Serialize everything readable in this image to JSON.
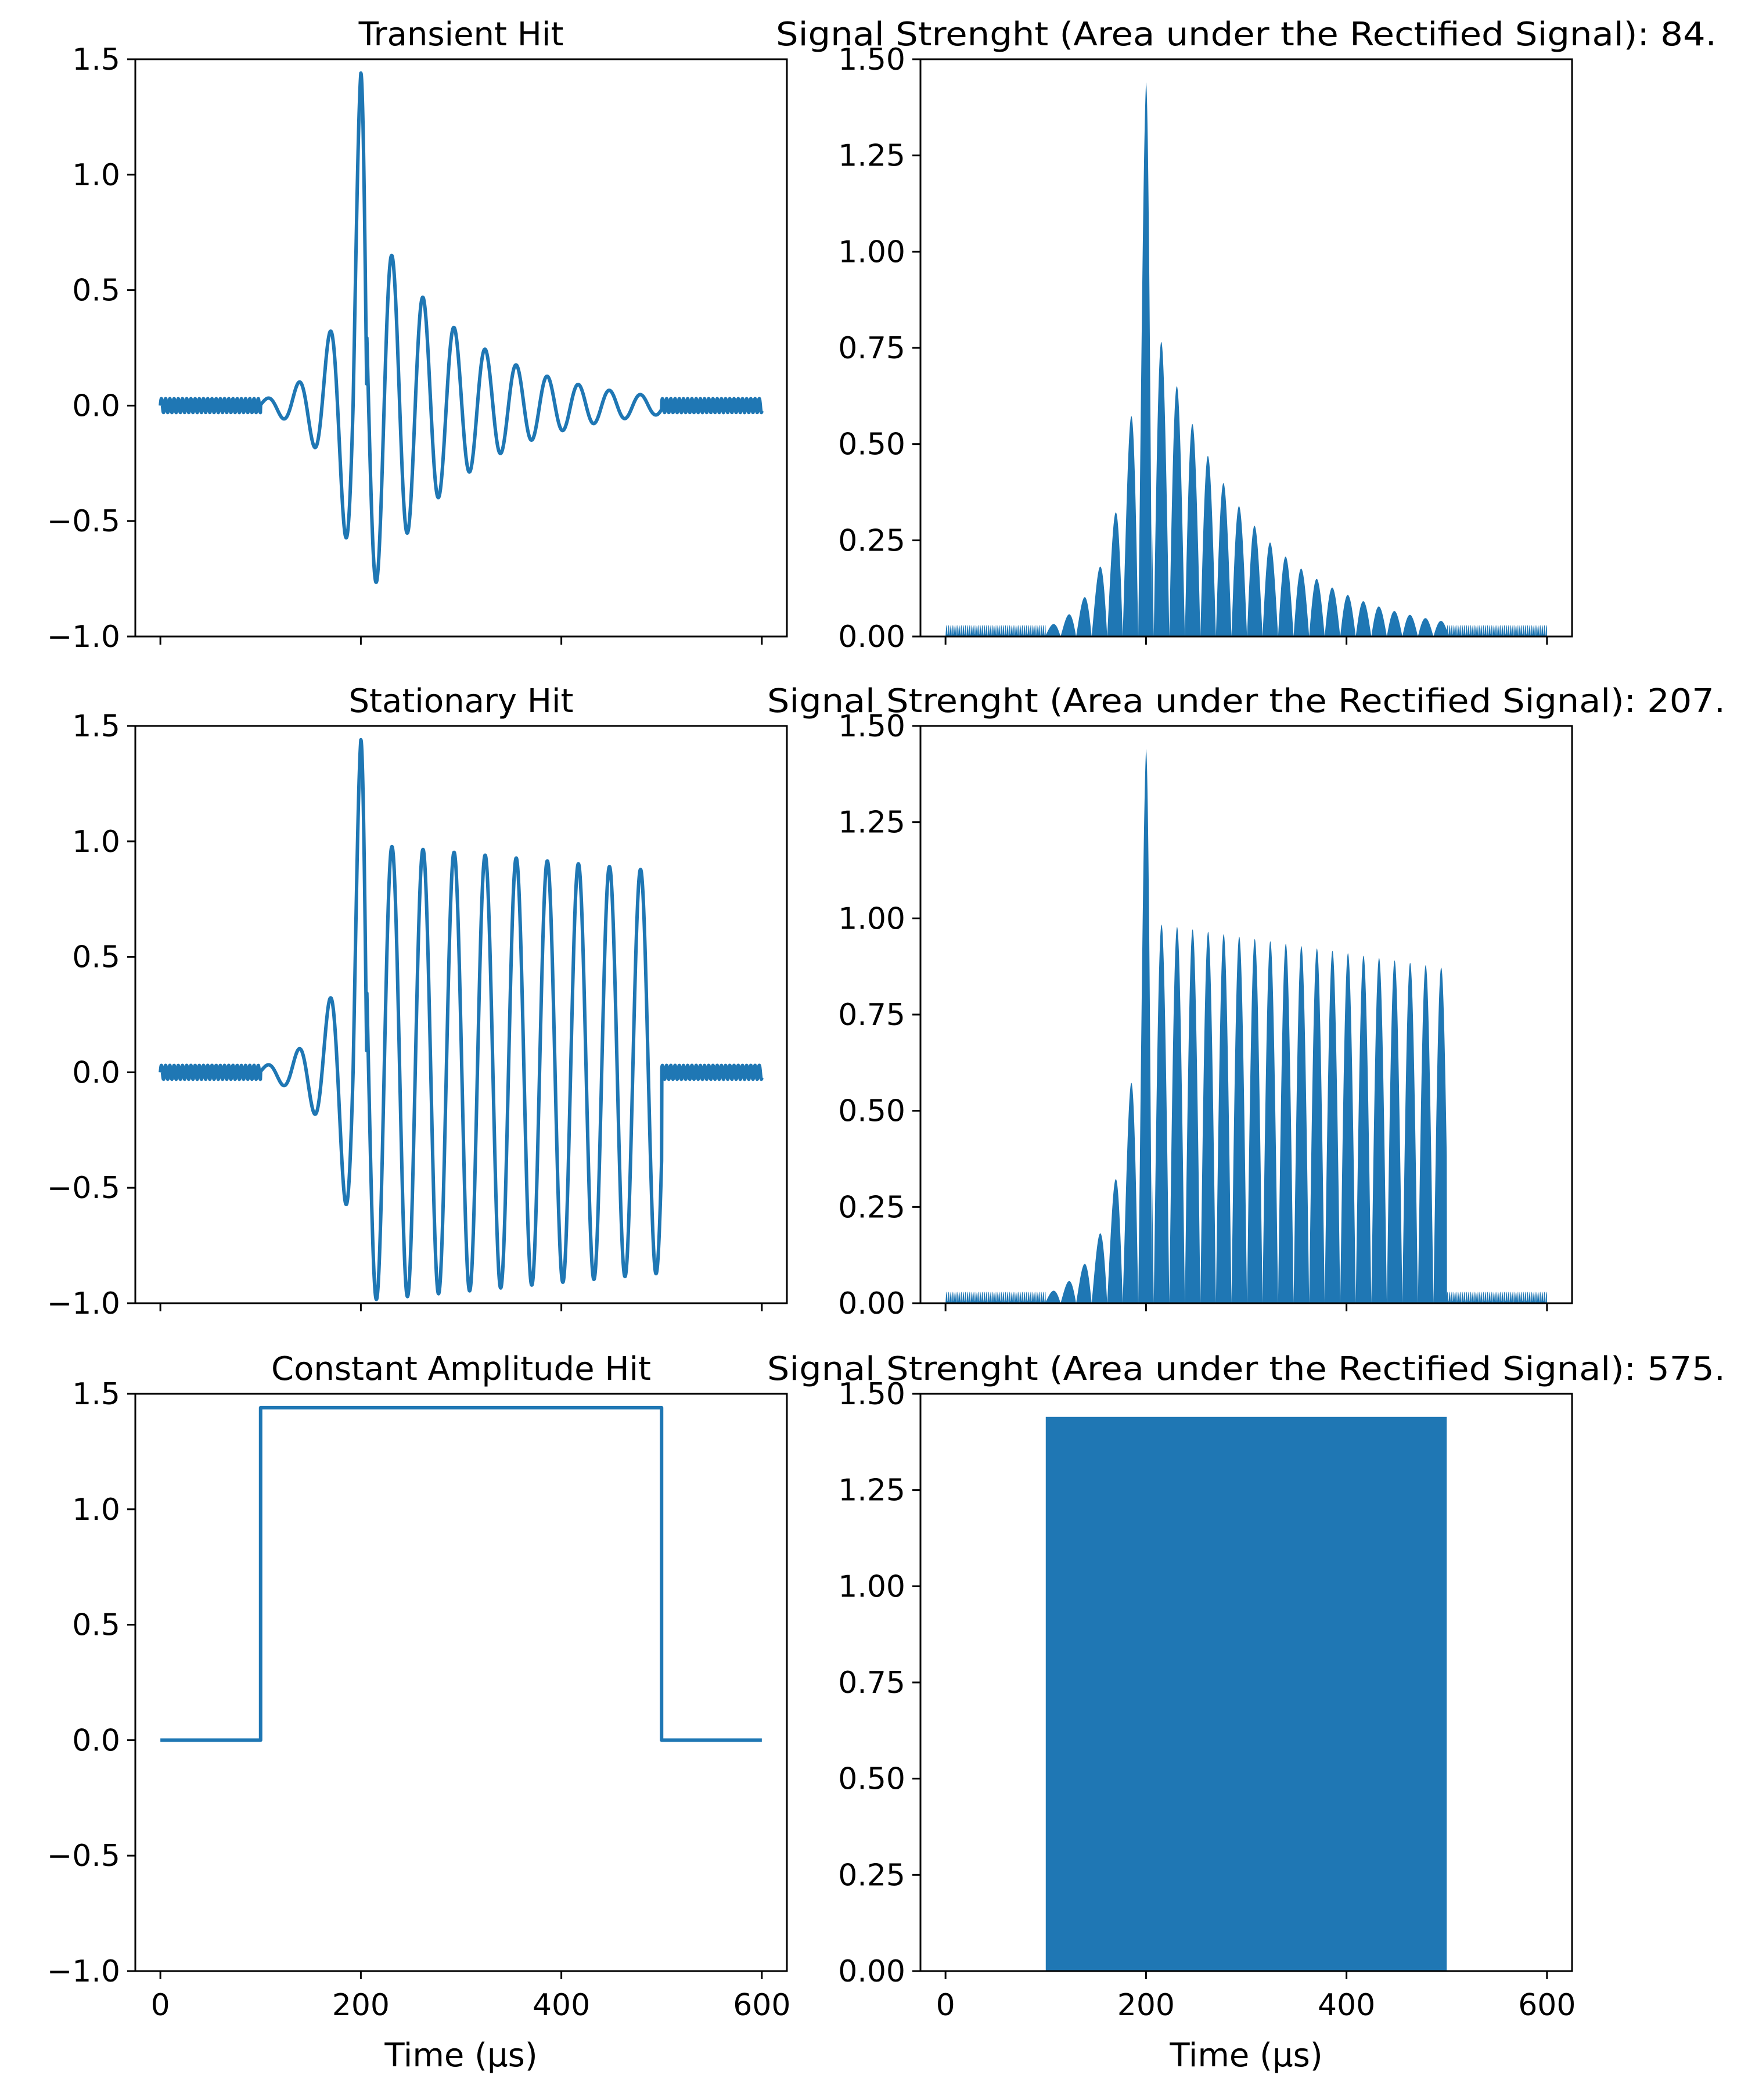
{
  "colors": {
    "series": "#1f77b4",
    "axes": "#000000",
    "background": "#ffffff"
  },
  "chart_data": [
    {
      "id": "transient-raw",
      "type": "line",
      "title": "Transient Hit",
      "xlabel": "",
      "ylabel": "",
      "xlim": [
        -25,
        625
      ],
      "ylim": [
        -1.0,
        1.5
      ],
      "xticks": [
        0,
        200,
        400,
        600
      ],
      "xtick_labels": [
        "",
        "",
        "",
        ""
      ],
      "yticks": [
        -1.0,
        -0.5,
        0.0,
        0.5,
        1.0,
        1.5
      ],
      "ytick_labels": [
        "−1.0",
        "−0.5",
        "0.0",
        "0.5",
        "1.0",
        "1.5"
      ],
      "signal": {
        "kind": "transient",
        "noise_amplitude": 0.03,
        "onset_us": 100,
        "end_us": 500,
        "peak_time_us": 200,
        "peak": 1.44,
        "oscillation_period_us": 31
      }
    },
    {
      "id": "transient-rectified",
      "type": "area",
      "title": "Signal Strenght (Area under the Rectified Signal): 84.",
      "xlabel": "",
      "ylabel": "",
      "xlim": [
        -25,
        625
      ],
      "ylim": [
        0.0,
        1.5
      ],
      "xticks": [
        0,
        200,
        400,
        600
      ],
      "xtick_labels": [
        "",
        "",
        "",
        ""
      ],
      "yticks": [
        0.0,
        0.25,
        0.5,
        0.75,
        1.0,
        1.25,
        1.5
      ],
      "ytick_labels": [
        "0.00",
        "0.25",
        "0.50",
        "0.75",
        "1.00",
        "1.25",
        "1.50"
      ],
      "signal": {
        "kind": "transient",
        "rectified": true,
        "noise_amplitude": 0.03,
        "onset_us": 100,
        "end_us": 500,
        "peak_time_us": 200,
        "peak": 1.44,
        "oscillation_period_us": 31
      }
    },
    {
      "id": "stationary-raw",
      "type": "line",
      "title": "Stationary Hit",
      "xlabel": "",
      "ylabel": "",
      "xlim": [
        -25,
        625
      ],
      "ylim": [
        -1.0,
        1.5
      ],
      "xticks": [
        0,
        200,
        400,
        600
      ],
      "xtick_labels": [
        "",
        "",
        "",
        ""
      ],
      "yticks": [
        -1.0,
        -0.5,
        0.0,
        0.5,
        1.0,
        1.5
      ],
      "ytick_labels": [
        "−1.0",
        "−0.5",
        "0.0",
        "0.5",
        "1.0",
        "1.5"
      ],
      "signal": {
        "kind": "stationary",
        "noise_amplitude": 0.03,
        "onset_us": 100,
        "end_us": 500,
        "peak_time_us": 200,
        "peak": 1.44,
        "sustained_amplitude_start": 0.99,
        "sustained_amplitude_end": 0.87,
        "oscillation_period_us": 31
      }
    },
    {
      "id": "stationary-rectified",
      "type": "area",
      "title": "Signal Strenght (Area under the Rectified Signal): 207.",
      "xlabel": "",
      "ylabel": "",
      "xlim": [
        -25,
        625
      ],
      "ylim": [
        0.0,
        1.5
      ],
      "xticks": [
        0,
        200,
        400,
        600
      ],
      "xtick_labels": [
        "",
        "",
        "",
        ""
      ],
      "yticks": [
        0.0,
        0.25,
        0.5,
        0.75,
        1.0,
        1.25,
        1.5
      ],
      "ytick_labels": [
        "0.00",
        "0.25",
        "0.50",
        "0.75",
        "1.00",
        "1.25",
        "1.50"
      ],
      "signal": {
        "kind": "stationary",
        "rectified": true,
        "noise_amplitude": 0.03,
        "onset_us": 100,
        "end_us": 500,
        "peak_time_us": 200,
        "peak": 1.44,
        "sustained_amplitude_start": 0.99,
        "sustained_amplitude_end": 0.87,
        "oscillation_period_us": 31
      }
    },
    {
      "id": "constant-raw",
      "type": "line",
      "title": "Constant Amplitude Hit",
      "xlabel": "Time (μs)",
      "ylabel": "",
      "xlim": [
        -25,
        625
      ],
      "ylim": [
        -1.0,
        1.5
      ],
      "xticks": [
        0,
        200,
        400,
        600
      ],
      "xtick_labels": [
        "0",
        "200",
        "400",
        "600"
      ],
      "yticks": [
        -1.0,
        -0.5,
        0.0,
        0.5,
        1.0,
        1.5
      ],
      "ytick_labels": [
        "−1.0",
        "−0.5",
        "0.0",
        "0.5",
        "1.0",
        "1.5"
      ],
      "signal": {
        "kind": "constant",
        "onset_us": 100,
        "end_us": 500,
        "level": 1.44
      }
    },
    {
      "id": "constant-rectified",
      "type": "area",
      "title": "Signal Strenght (Area under the Rectified Signal): 575.",
      "xlabel": "Time (μs)",
      "ylabel": "",
      "xlim": [
        -25,
        625
      ],
      "ylim": [
        0.0,
        1.5
      ],
      "xticks": [
        0,
        200,
        400,
        600
      ],
      "xtick_labels": [
        "0",
        "200",
        "400",
        "600"
      ],
      "yticks": [
        0.0,
        0.25,
        0.5,
        0.75,
        1.0,
        1.25,
        1.5
      ],
      "ytick_labels": [
        "0.00",
        "0.25",
        "0.50",
        "0.75",
        "1.00",
        "1.25",
        "1.50"
      ],
      "signal": {
        "kind": "constant",
        "rectified": true,
        "onset_us": 100,
        "end_us": 500,
        "level": 1.44
      }
    }
  ]
}
